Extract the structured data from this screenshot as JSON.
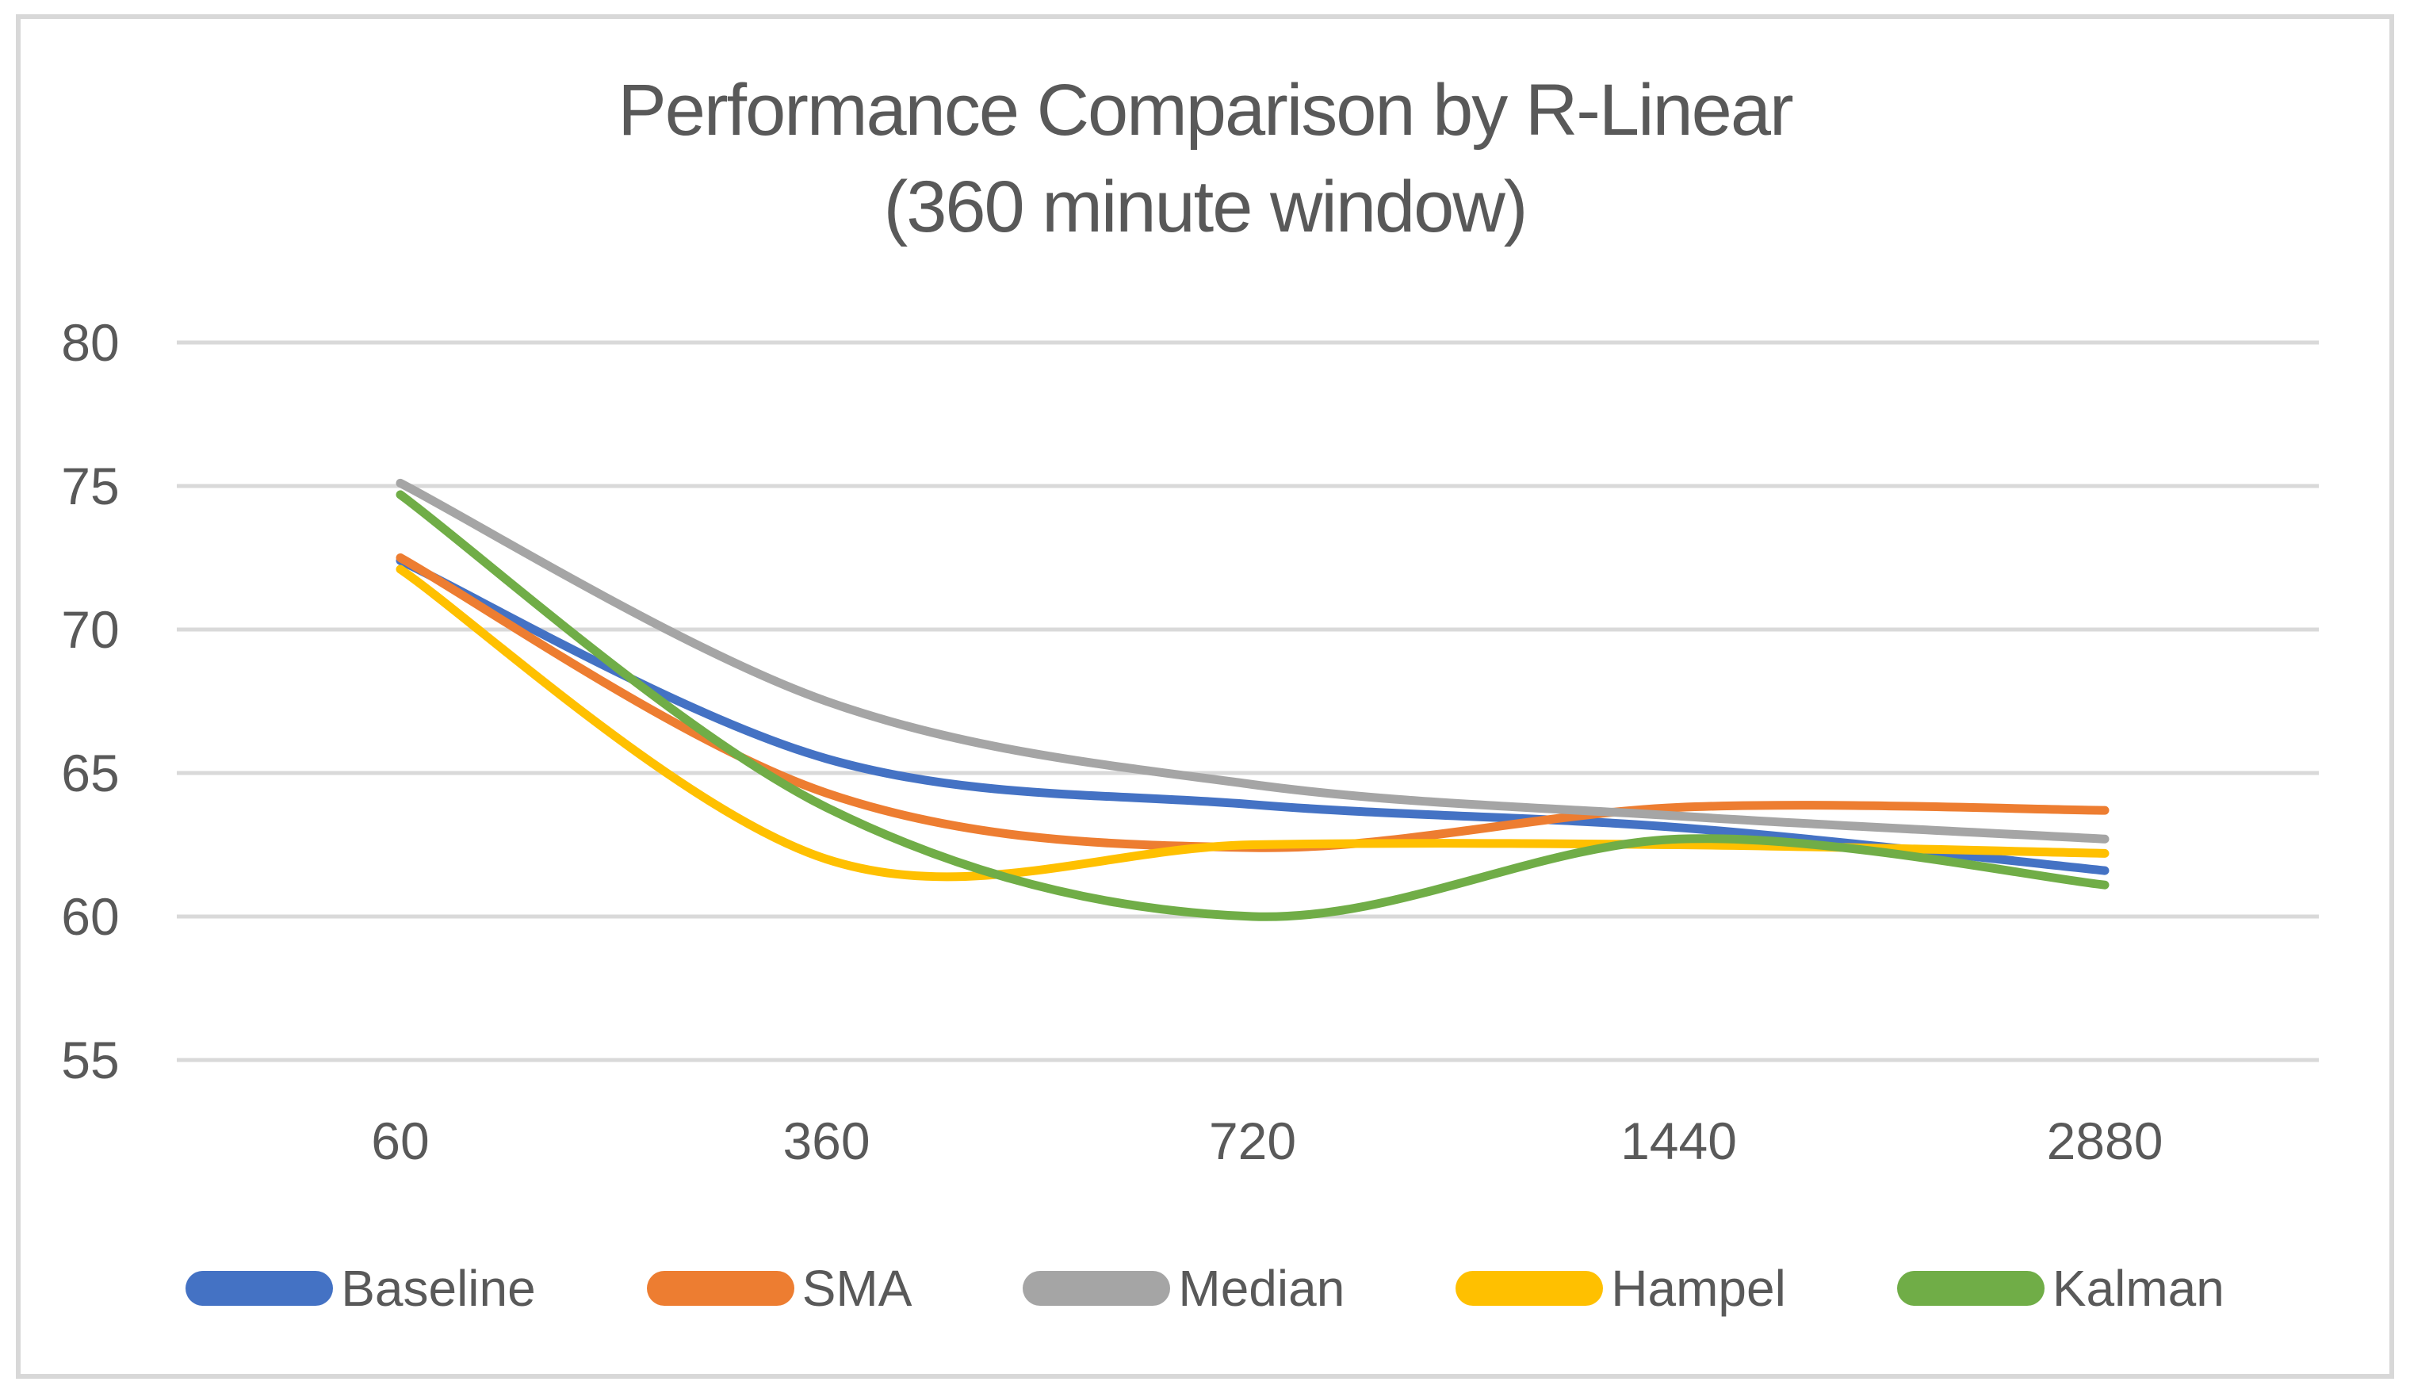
{
  "title": {
    "line1": "Performance Comparison by R-Linear",
    "line2": "(360 minute window)"
  },
  "colors": {
    "text": "#595959",
    "gridline": "#D9D9D9",
    "frame_border": "#D8D8D8",
    "background": "#FFFFFF"
  },
  "chart_data": {
    "type": "line",
    "smooth": true,
    "title": "Performance Comparison by R-Linear (360 minute window)",
    "categories": [
      "60",
      "360",
      "720",
      "1440",
      "2880"
    ],
    "series": [
      {
        "name": "Baseline",
        "color": "#4472C4",
        "values": [
          72.4,
          65.5,
          63.9,
          63.1,
          61.6
        ]
      },
      {
        "name": "SMA",
        "color": "#ED7D31",
        "values": [
          72.5,
          64.3,
          62.4,
          63.8,
          63.7
        ]
      },
      {
        "name": "Median",
        "color": "#A5A5A5",
        "values": [
          75.1,
          67.5,
          64.6,
          63.5,
          62.7
        ]
      },
      {
        "name": "Hampel",
        "color": "#FFC000",
        "values": [
          72.1,
          62.0,
          62.5,
          62.5,
          62.2
        ]
      },
      {
        "name": "Kalman",
        "color": "#70AD47",
        "values": [
          74.7,
          63.8,
          60.0,
          62.7,
          61.1
        ]
      }
    ],
    "yticks": [
      80,
      75,
      70,
      65,
      60,
      55
    ],
    "ylim": [
      55,
      80
    ],
    "xlabel": "",
    "ylabel": "",
    "grid": true,
    "legend_position": "bottom"
  }
}
